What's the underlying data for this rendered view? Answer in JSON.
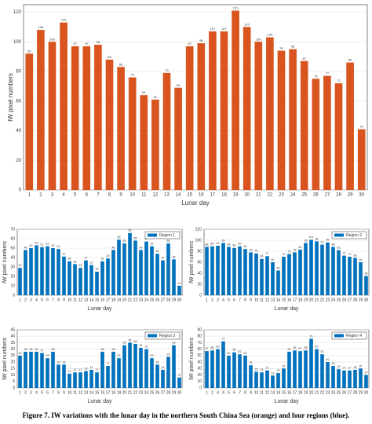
{
  "chart_data": [
    {
      "type": "bar",
      "xlabel": "Lunar day",
      "ylabel": "IW pixel numbers",
      "categories": [
        "1",
        "2",
        "3",
        "4",
        "5",
        "6",
        "7",
        "8",
        "9",
        "10",
        "11",
        "12",
        "13",
        "14",
        "15",
        "16",
        "17",
        "18",
        "19",
        "20",
        "21",
        "22",
        "23",
        "24",
        "25",
        "26",
        "27",
        "28",
        "29",
        "30"
      ],
      "values": [
        92,
        108,
        100,
        113,
        97,
        97,
        98,
        88,
        83,
        76,
        64,
        61,
        79,
        69,
        97,
        99,
        107,
        107,
        121,
        110,
        100,
        103,
        94,
        95,
        87,
        75,
        77,
        72,
        86,
        41
      ],
      "color": "#d9541e",
      "ylim": [
        0,
        125
      ],
      "yticks": [
        0,
        20,
        40,
        60,
        80,
        100,
        120
      ],
      "grid": true
    },
    {
      "type": "bar",
      "xlabel": "Lunar day",
      "ylabel": "IW pixel numbers",
      "categories": [
        "1",
        "2",
        "3",
        "4",
        "5",
        "6",
        "7",
        "8",
        "9",
        "10",
        "11",
        "12",
        "13",
        "14",
        "15",
        "16",
        "17",
        "18",
        "19",
        "20",
        "21",
        "22",
        "23",
        "24",
        "25",
        "26",
        "27",
        "28",
        "29",
        "30"
      ],
      "series": [
        {
          "name": "Region 1",
          "color": "#0072bd",
          "values": [
            29,
            48,
            50,
            53,
            51,
            52,
            50,
            49,
            41,
            36,
            33,
            29,
            37,
            32,
            25,
            36,
            39,
            48,
            59,
            55,
            66,
            58,
            48,
            57,
            52,
            44,
            37,
            55,
            38,
            10
          ]
        }
      ],
      "ylim": [
        0,
        70
      ],
      "yticks": [
        0,
        10,
        20,
        30,
        40,
        50,
        60,
        70
      ],
      "grid": true,
      "legend": "northeast"
    },
    {
      "type": "bar",
      "xlabel": "Lunar day",
      "ylabel": "IW pixel numbers",
      "categories": [
        "1",
        "2",
        "3",
        "4",
        "5",
        "6",
        "7",
        "8",
        "9",
        "10",
        "11",
        "12",
        "13",
        "14",
        "15",
        "16",
        "17",
        "18",
        "19",
        "20",
        "21",
        "22",
        "23",
        "24",
        "25",
        "26",
        "27",
        "28",
        "29",
        "30"
      ],
      "series": [
        {
          "name": "Region 2",
          "color": "#0072bd",
          "values": [
            88,
            89,
            90,
            95,
            88,
            86,
            89,
            84,
            78,
            76,
            66,
            71,
            60,
            45,
            70,
            75,
            78,
            83,
            95,
            101,
            98,
            92,
            96,
            88,
            82,
            72,
            70,
            68,
            60,
            35
          ]
        }
      ],
      "ylim": [
        0,
        120
      ],
      "yticks": [
        0,
        20,
        40,
        60,
        80,
        100,
        120
      ],
      "grid": true,
      "legend": "northeast"
    },
    {
      "type": "bar",
      "xlabel": "Lunar day",
      "ylabel": "IW pixel numbers",
      "categories": [
        "1",
        "2",
        "3",
        "4",
        "5",
        "6",
        "7",
        "8",
        "9",
        "10",
        "11",
        "12",
        "13",
        "14",
        "15",
        "16",
        "17",
        "18",
        "19",
        "20",
        "21",
        "22",
        "23",
        "24",
        "25",
        "26",
        "27",
        "28",
        "29",
        "30"
      ],
      "series": [
        {
          "name": "Region 3",
          "color": "#0072bd",
          "values": [
            25,
            28,
            28,
            28,
            27,
            23,
            28,
            18,
            18,
            11,
            12,
            12,
            13,
            14,
            12,
            28,
            17,
            28,
            23,
            33,
            35,
            34,
            31,
            30,
            23,
            18,
            14,
            24,
            33,
            8
          ]
        }
      ],
      "ylim": [
        0,
        45
      ],
      "yticks": [
        0,
        5,
        10,
        15,
        20,
        25,
        30,
        35,
        40,
        45
      ],
      "grid": true,
      "legend": "northeast"
    },
    {
      "type": "bar",
      "xlabel": "Lunar day",
      "ylabel": "IW pixel numbers",
      "categories": [
        "1",
        "2",
        "3",
        "4",
        "5",
        "6",
        "7",
        "8",
        "9",
        "10",
        "11",
        "12",
        "13",
        "14",
        "15",
        "16",
        "17",
        "18",
        "19",
        "20",
        "21",
        "22",
        "23",
        "24",
        "25",
        "26",
        "27",
        "28",
        "29",
        "30"
      ],
      "series": [
        {
          "name": "Region 4",
          "color": "#0072bd",
          "values": [
            57,
            58,
            60,
            72,
            50,
            55,
            52,
            50,
            35,
            25,
            24,
            27,
            19,
            23,
            30,
            56,
            58,
            57,
            58,
            76,
            60,
            52,
            40,
            34,
            29,
            27,
            27,
            28,
            30,
            20
          ]
        }
      ],
      "ylim": [
        0,
        90
      ],
      "yticks": [
        0,
        10,
        20,
        30,
        40,
        50,
        60,
        70,
        80,
        90
      ],
      "grid": true,
      "legend": "northeast"
    }
  ],
  "caption": "Figure 7. IW variations with the lunar day in the northern South China Sea (orange) and four regions (blue)."
}
